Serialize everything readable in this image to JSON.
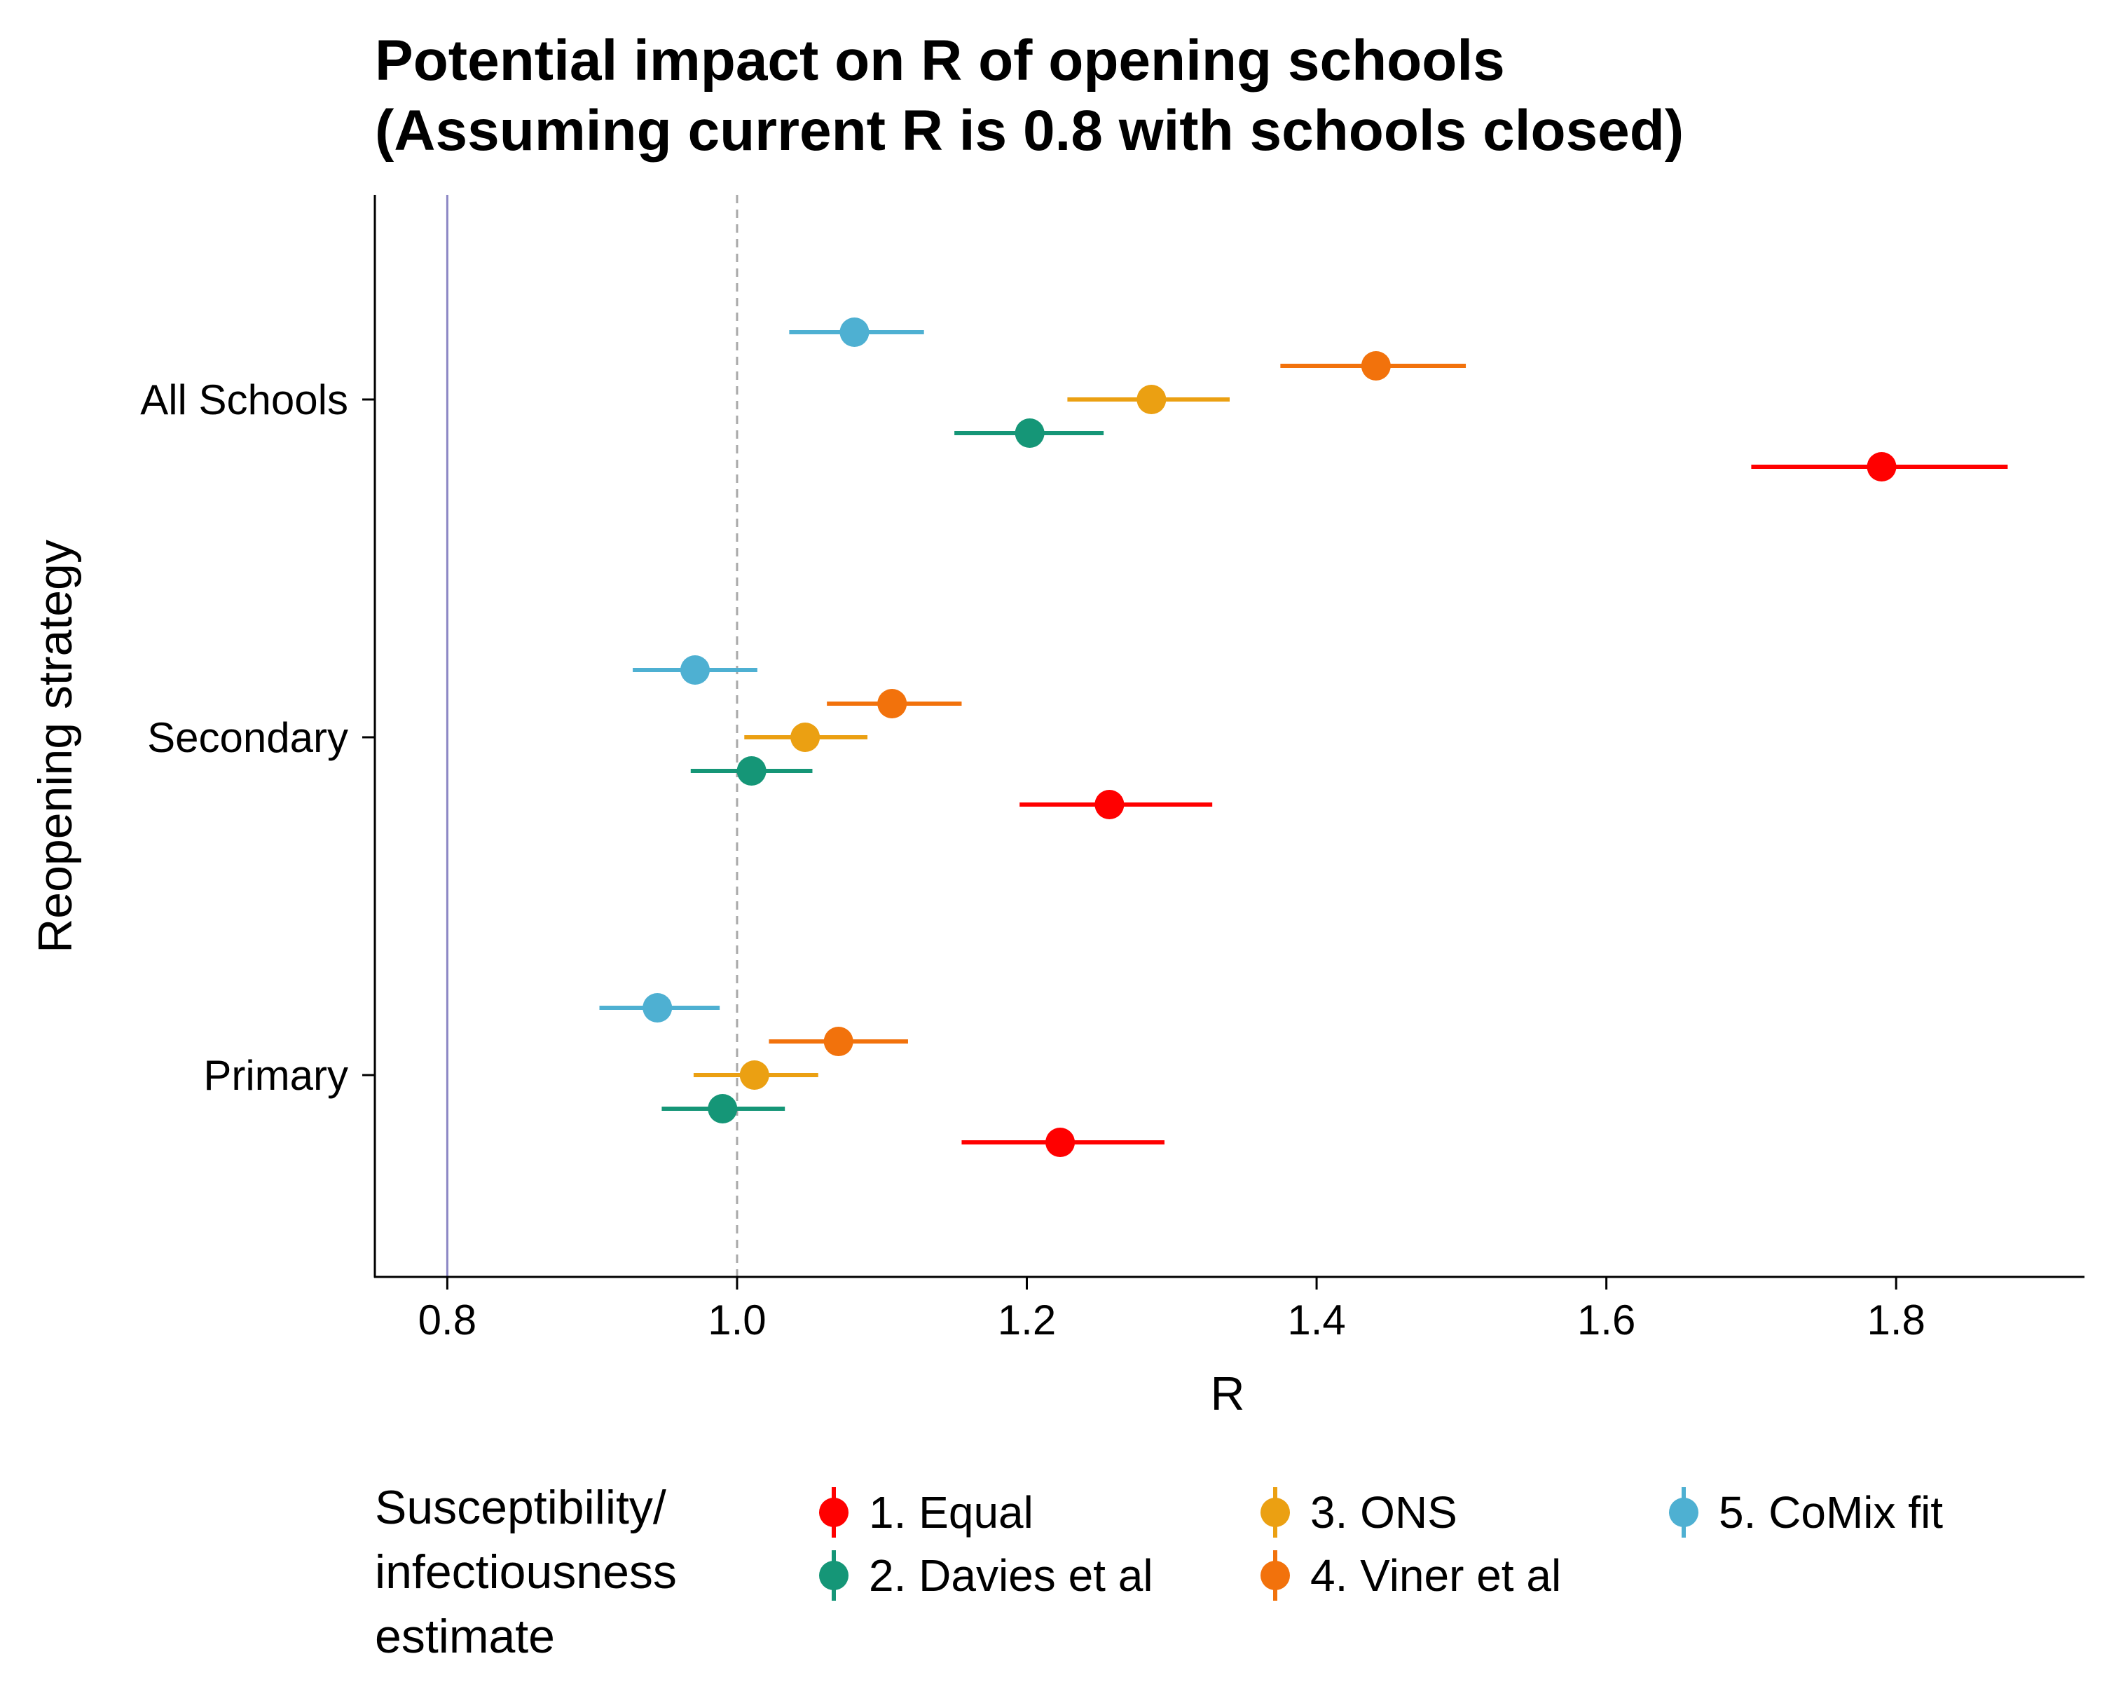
{
  "chart_data": {
    "type": "scatter",
    "title_line1": "Potential impact on R of opening schools",
    "title_line2": "(Assuming current R is 0.8 with schools closed)",
    "xlabel": "R",
    "ylabel": "Reopening strategy",
    "xlim": [
      0.75,
      1.93
    ],
    "x_ticks": [
      "0.8",
      "1.0",
      "1.2",
      "1.4",
      "1.6",
      "1.8"
    ],
    "categories": [
      "All Schools",
      "Secondary",
      "Primary"
    ],
    "reference_lines": {
      "solid": 0.8,
      "dashed": 1.0
    },
    "legend_title": "Susceptibility/ infectiousness estimate",
    "legend_position": "bottom",
    "series": [
      {
        "name": "1. Equal",
        "color": "#ff0000",
        "points": [
          {
            "category": "All Schools",
            "x": 1.79,
            "low": 1.7,
            "high": 1.877
          },
          {
            "category": "Secondary",
            "x": 1.257,
            "low": 1.195,
            "high": 1.328
          },
          {
            "category": "Primary",
            "x": 1.223,
            "low": 1.155,
            "high": 1.295
          }
        ]
      },
      {
        "name": "2. Davies et al",
        "color": "#159677",
        "points": [
          {
            "category": "All Schools",
            "x": 1.202,
            "low": 1.15,
            "high": 1.253
          },
          {
            "category": "Secondary",
            "x": 1.01,
            "low": 0.968,
            "high": 1.052
          },
          {
            "category": "Primary",
            "x": 0.99,
            "low": 0.948,
            "high": 1.033
          }
        ]
      },
      {
        "name": "3. ONS",
        "color": "#eba012",
        "points": [
          {
            "category": "All Schools",
            "x": 1.286,
            "low": 1.228,
            "high": 1.34
          },
          {
            "category": "Secondary",
            "x": 1.047,
            "low": 1.005,
            "high": 1.09
          },
          {
            "category": "Primary",
            "x": 1.012,
            "low": 0.97,
            "high": 1.056
          }
        ]
      },
      {
        "name": "4. Viner et al",
        "color": "#f2720c",
        "points": [
          {
            "category": "All Schools",
            "x": 1.441,
            "low": 1.375,
            "high": 1.503
          },
          {
            "category": "Secondary",
            "x": 1.107,
            "low": 1.062,
            "high": 1.155
          },
          {
            "category": "Primary",
            "x": 1.07,
            "low": 1.022,
            "high": 1.118
          }
        ]
      },
      {
        "name": "5. CoMix fit",
        "color": "#4eb0d2",
        "points": [
          {
            "category": "All Schools",
            "x": 1.081,
            "low": 1.036,
            "high": 1.129
          },
          {
            "category": "Secondary",
            "x": 0.971,
            "low": 0.928,
            "high": 1.014
          },
          {
            "category": "Primary",
            "x": 0.945,
            "low": 0.905,
            "high": 0.988
          }
        ]
      }
    ]
  }
}
